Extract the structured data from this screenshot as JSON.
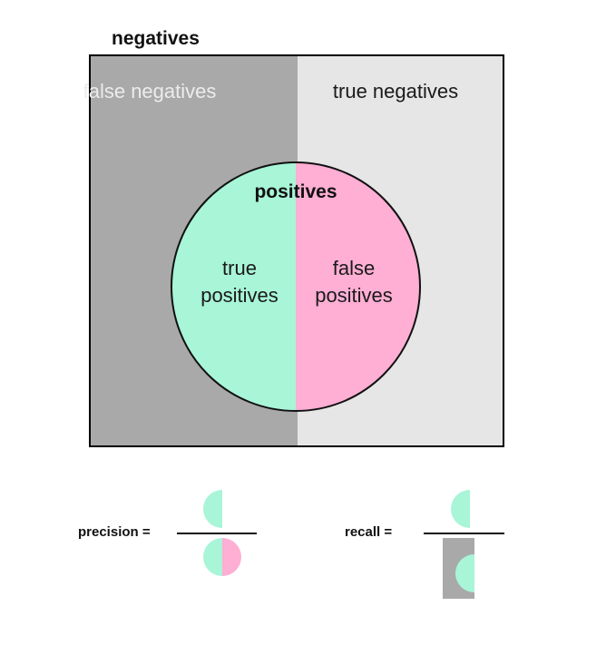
{
  "title": "negatives",
  "quadrants": {
    "false_negatives": "false negatives",
    "true_negatives": "true negatives"
  },
  "circle": {
    "title": "positives",
    "true_positives": "true\npositives",
    "false_positives": "false\npositives"
  },
  "formulas": {
    "precision_label": "precision =",
    "recall_label": "recall ="
  },
  "colors": {
    "false_negative_gray": "#a9a9a9",
    "true_negative_gray": "#e6e6e6",
    "true_positive_mint": "#a8f5d8",
    "false_positive_pink": "#ffaed4"
  }
}
